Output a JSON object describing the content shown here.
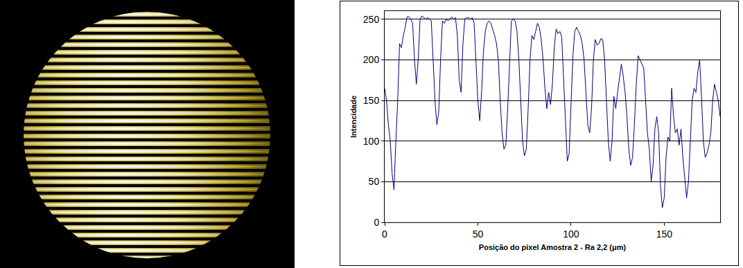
{
  "chart_data": {
    "type": "line",
    "x_label": "Posição do pixel Amostra 2 - Ra 2,2 (μm)",
    "y_label": "Intencidade",
    "color": "#000080",
    "grid": true,
    "xlim": [
      0,
      180
    ],
    "xticks": [
      0,
      50,
      100,
      150
    ],
    "ylim": [
      0,
      260
    ],
    "yticks": [
      0,
      50,
      100,
      150,
      200,
      250
    ],
    "x": [
      0,
      1,
      2,
      3,
      4,
      5,
      6,
      7,
      8,
      9,
      10,
      11,
      12,
      13,
      14,
      15,
      16,
      17,
      18,
      19,
      20,
      21,
      22,
      23,
      24,
      25,
      26,
      27,
      28,
      29,
      30,
      31,
      32,
      33,
      34,
      35,
      36,
      37,
      38,
      39,
      40,
      41,
      42,
      43,
      44,
      45,
      46,
      47,
      48,
      49,
      50,
      51,
      52,
      53,
      54,
      55,
      56,
      57,
      58,
      59,
      60,
      61,
      62,
      63,
      64,
      65,
      66,
      67,
      68,
      69,
      70,
      71,
      72,
      73,
      74,
      75,
      76,
      77,
      78,
      79,
      80,
      81,
      82,
      83,
      84,
      85,
      86,
      87,
      88,
      89,
      90,
      91,
      92,
      93,
      94,
      95,
      96,
      97,
      98,
      99,
      100,
      101,
      102,
      103,
      104,
      105,
      106,
      107,
      108,
      109,
      110,
      111,
      112,
      113,
      114,
      115,
      116,
      117,
      118,
      119,
      120,
      121,
      122,
      123,
      124,
      125,
      126,
      127,
      128,
      129,
      130,
      131,
      132,
      133,
      134,
      135,
      136,
      137,
      138,
      139,
      140,
      141,
      142,
      143,
      144,
      145,
      146,
      147,
      148,
      149,
      150,
      151,
      152,
      153,
      154,
      155,
      156,
      157,
      158,
      159,
      160,
      161,
      162,
      163,
      164,
      165,
      166,
      167,
      168,
      169,
      170,
      171,
      172,
      173,
      174,
      175,
      176,
      177,
      178,
      179,
      180
    ],
    "values": [
      165,
      150,
      120,
      100,
      60,
      40,
      100,
      150,
      220,
      215,
      230,
      240,
      253,
      253,
      250,
      245,
      200,
      170,
      200,
      250,
      254,
      252,
      250,
      252,
      250,
      248,
      200,
      150,
      120,
      135,
      200,
      248,
      245,
      250,
      248,
      250,
      253,
      250,
      252,
      230,
      175,
      160,
      220,
      250,
      252,
      252,
      250,
      252,
      245,
      200,
      150,
      125,
      160,
      210,
      235,
      245,
      248,
      245,
      238,
      230,
      220,
      200,
      150,
      110,
      90,
      95,
      140,
      200,
      248,
      250,
      248,
      235,
      200,
      150,
      100,
      82,
      90,
      140,
      200,
      230,
      225,
      235,
      245,
      240,
      225,
      200,
      165,
      140,
      160,
      145,
      170,
      215,
      238,
      232,
      235,
      228,
      180,
      120,
      75,
      85,
      140,
      205,
      235,
      240,
      235,
      230,
      220,
      200,
      160,
      120,
      110,
      140,
      200,
      225,
      218,
      220,
      226,
      225,
      200,
      150,
      100,
      75,
      100,
      155,
      140,
      160,
      180,
      195,
      180,
      160,
      130,
      90,
      70,
      80,
      120,
      170,
      205,
      200,
      195,
      190,
      150,
      110,
      90,
      50,
      70,
      115,
      130,
      110,
      45,
      18,
      30,
      80,
      105,
      100,
      165,
      130,
      110,
      115,
      95,
      115,
      80,
      55,
      30,
      50,
      100,
      150,
      165,
      160,
      185,
      200,
      155,
      100,
      80,
      85,
      95,
      110,
      150,
      170,
      160,
      150,
      130
    ]
  }
}
